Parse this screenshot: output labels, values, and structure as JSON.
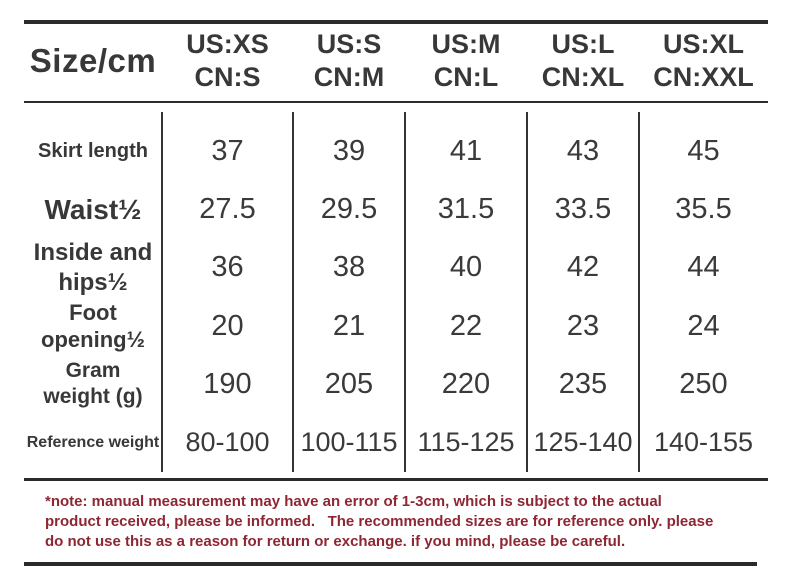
{
  "table": {
    "corner_label": "Size/cm",
    "columns": [
      {
        "us": "US:XS",
        "cn": "CN:S"
      },
      {
        "us": "US:S",
        "cn": "CN:M"
      },
      {
        "us": "US:M",
        "cn": "CN:L"
      },
      {
        "us": "US:L",
        "cn": "CN:XL"
      },
      {
        "us": "US:XL",
        "cn": "CN:XXL"
      }
    ],
    "rows": [
      {
        "label": "Skirt length",
        "values": [
          "37",
          "39",
          "41",
          "43",
          "45"
        ]
      },
      {
        "label": "Waist½",
        "values": [
          "27.5",
          "29.5",
          "31.5",
          "33.5",
          "35.5"
        ]
      },
      {
        "label": "Inside and\nhips½",
        "values": [
          "36",
          "38",
          "40",
          "42",
          "44"
        ]
      },
      {
        "label": "Foot\nopening½",
        "values": [
          "20",
          "21",
          "22",
          "23",
          "24"
        ]
      },
      {
        "label": "Gram\nweight (g)",
        "values": [
          "190",
          "205",
          "220",
          "235",
          "250"
        ]
      },
      {
        "label": "Reference weight",
        "values": [
          "80-100",
          "100-115",
          "115-125",
          "125-140",
          "140-155"
        ]
      }
    ]
  },
  "note": {
    "lines": [
      "*note: manual measurement may have an error of 1-3cm, which is subject to the actual",
      "product received, please be informed.   The recommended sizes are for reference only. please",
      "do not use this as a reason for return or exchange. if you mind, please be careful."
    ]
  },
  "colors": {
    "text": "#383838",
    "rule": "#2b2b2b",
    "note": "#8e2633"
  },
  "chart_data": {
    "type": "table",
    "title": "Size/cm",
    "columns": [
      "US:XS / CN:S",
      "US:S / CN:M",
      "US:M / CN:L",
      "US:L / CN:XL",
      "US:XL / CN:XXL"
    ],
    "rows": [
      {
        "label": "Skirt length",
        "values": [
          37,
          39,
          41,
          43,
          45
        ]
      },
      {
        "label": "Waist½",
        "values": [
          27.5,
          29.5,
          31.5,
          33.5,
          35.5
        ]
      },
      {
        "label": "Inside and hips½",
        "values": [
          36,
          38,
          40,
          42,
          44
        ]
      },
      {
        "label": "Foot opening½",
        "values": [
          20,
          21,
          22,
          23,
          24
        ]
      },
      {
        "label": "Gram weight (g)",
        "values": [
          190,
          205,
          220,
          235,
          250
        ]
      },
      {
        "label": "Reference weight",
        "values": [
          "80-100",
          "100-115",
          "115-125",
          "125-140",
          "140-155"
        ]
      }
    ]
  }
}
